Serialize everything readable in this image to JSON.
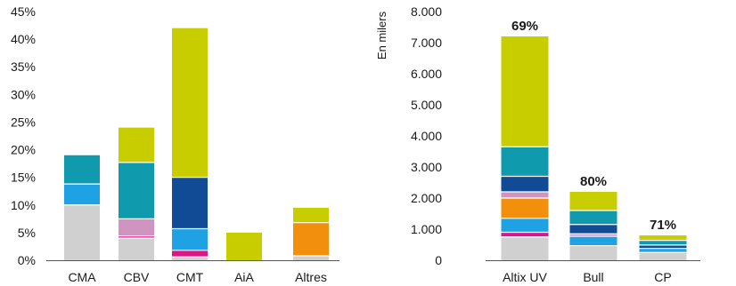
{
  "colors": {
    "grey": "#d0d0d0",
    "light_blue": "#1fa2e3",
    "teal": "#0f9aad",
    "magenta": "#dd1683",
    "pink": "#cf95c0",
    "navy": "#114b95",
    "orange": "#f28f0c",
    "lime": "#c8cd00",
    "axis": "#555555"
  },
  "chart_data": [
    {
      "type": "bar",
      "stacked": true,
      "categories": [
        "CMA",
        "CBV",
        "CMT",
        "AiA",
        "Altres"
      ],
      "ylim": [
        0,
        45
      ],
      "yticks": [
        "0%",
        "5%",
        "10%",
        "15%",
        "20%",
        "25%",
        "30%",
        "35%",
        "40%",
        "45%"
      ],
      "grid": false,
      "bars": [
        {
          "category": "CMA",
          "segments": [
            {
              "color": "grey",
              "value": 10.0
            },
            {
              "color": "light_blue",
              "value": 3.8
            },
            {
              "color": "teal",
              "value": 5.2
            }
          ]
        },
        {
          "category": "CBV",
          "segments": [
            {
              "color": "grey",
              "value": 4.0
            },
            {
              "color": "magenta",
              "value": 0.4
            },
            {
              "color": "pink",
              "value": 3.1
            },
            {
              "color": "teal",
              "value": 10.2
            },
            {
              "color": "lime",
              "value": 6.3
            }
          ]
        },
        {
          "category": "CMT",
          "segments": [
            {
              "color": "grey",
              "value": 0.6
            },
            {
              "color": "magenta",
              "value": 1.2
            },
            {
              "color": "light_blue",
              "value": 3.9
            },
            {
              "color": "navy",
              "value": 9.3
            },
            {
              "color": "lime",
              "value": 27.0
            }
          ]
        },
        {
          "category": "AiA",
          "segments": [
            {
              "color": "lime",
              "value": 5.0
            }
          ]
        },
        {
          "category": "Altres",
          "segments": [
            {
              "color": "grey",
              "value": 0.8
            },
            {
              "color": "orange",
              "value": 6.0
            },
            {
              "color": "lime",
              "value": 2.7
            }
          ]
        }
      ]
    },
    {
      "type": "bar",
      "stacked": true,
      "ylabel": "En milers",
      "categories": [
        "Altix UV",
        "Bull",
        "CP"
      ],
      "ylim": [
        0,
        8000
      ],
      "yticks": [
        "0",
        "1.000",
        "2.000",
        "3.000",
        "4.000",
        "5.000",
        "6.000",
        "7.000",
        "8.000"
      ],
      "grid": false,
      "annotations": [
        "69%",
        "80%",
        "71%"
      ],
      "bars": [
        {
          "category": "Altix UV",
          "segments": [
            {
              "color": "grey",
              "value": 750
            },
            {
              "color": "magenta",
              "value": 150
            },
            {
              "color": "light_blue",
              "value": 450
            },
            {
              "color": "orange",
              "value": 650
            },
            {
              "color": "pink",
              "value": 200
            },
            {
              "color": "navy",
              "value": 500
            },
            {
              "color": "teal",
              "value": 950
            },
            {
              "color": "lime",
              "value": 3550
            }
          ]
        },
        {
          "category": "Bull",
          "segments": [
            {
              "color": "grey",
              "value": 470
            },
            {
              "color": "light_blue",
              "value": 300
            },
            {
              "color": "pink",
              "value": 80
            },
            {
              "color": "navy",
              "value": 300
            },
            {
              "color": "teal",
              "value": 450
            },
            {
              "color": "lime",
              "value": 600
            }
          ]
        },
        {
          "category": "CP",
          "segments": [
            {
              "color": "grey",
              "value": 250
            },
            {
              "color": "light_blue",
              "value": 130
            },
            {
              "color": "navy",
              "value": 110
            },
            {
              "color": "teal",
              "value": 150
            },
            {
              "color": "lime",
              "value": 160
            }
          ]
        }
      ]
    }
  ]
}
